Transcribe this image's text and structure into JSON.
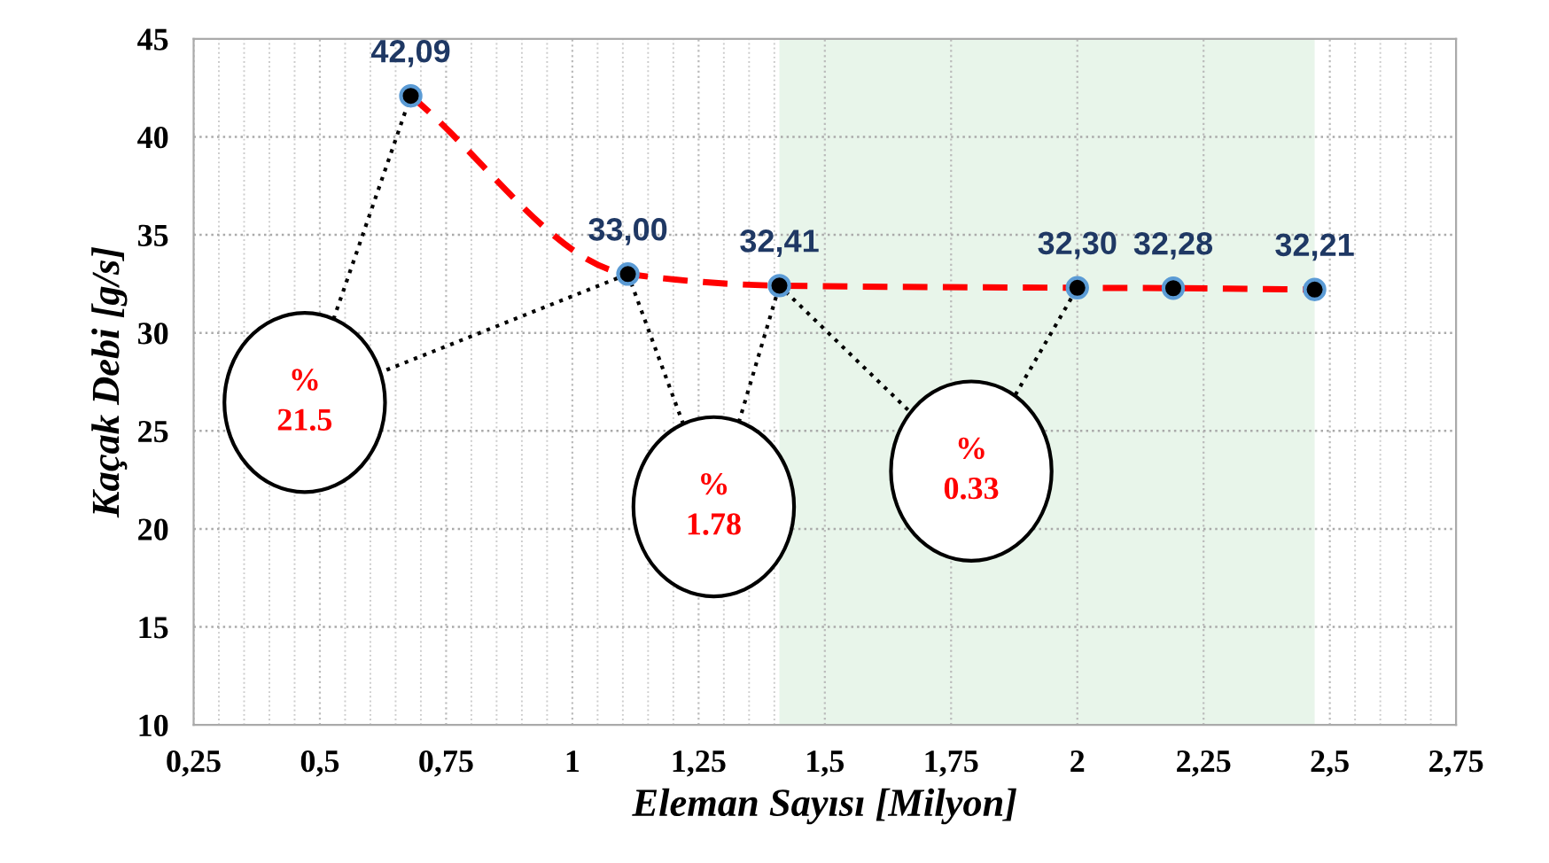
{
  "chart_data": {
    "type": "line",
    "xlabel": "Eleman Sayısı [Milyon]",
    "ylabel": "Kaçak Debi [g/s]",
    "x": [
      0.68,
      1.11,
      1.41,
      2.0,
      2.19,
      2.47
    ],
    "series": [
      {
        "color": "#ff0000",
        "values": [
          42.09,
          33.0,
          32.41,
          32.3,
          32.28,
          32.21
        ],
        "value_labels": [
          "42,09",
          "33,00",
          "32,41",
          "32,30",
          "32,28",
          "32,21"
        ]
      }
    ],
    "xlim": [
      0.25,
      2.75
    ],
    "xticks": [
      {
        "value": 0.25,
        "label": "0,25"
      },
      {
        "value": 0.5,
        "label": "0,5"
      },
      {
        "value": 0.75,
        "label": "0,75"
      },
      1,
      {
        "value": 1.25,
        "label": "1,25"
      },
      {
        "value": 1.5,
        "label": "1,5"
      },
      {
        "value": 1.75,
        "label": "1,75"
      },
      2,
      {
        "value": 2.25,
        "label": "2,25"
      },
      {
        "value": 2.5,
        "label": "2,5"
      },
      {
        "value": 2.75,
        "label": "2,75"
      }
    ],
    "ylim": [
      10,
      45
    ],
    "yticks": [
      10,
      15,
      20,
      25,
      30,
      35,
      40,
      45
    ],
    "bands": [
      {
        "axis": "x",
        "from": 1.41,
        "to": 2.47,
        "color": "#e8f5ea"
      }
    ],
    "annotations": [
      {
        "text": "%\n21.5",
        "x": 0.68,
        "y": 42.09
      },
      {
        "text": "%\n1.78",
        "x": 1.11,
        "y": 33.0
      },
      {
        "text": "%\n0.33",
        "x": 1.41,
        "y": 32.41
      }
    ],
    "marker": "circle",
    "line_style": "dashed",
    "grid": true,
    "legend": false
  }
}
